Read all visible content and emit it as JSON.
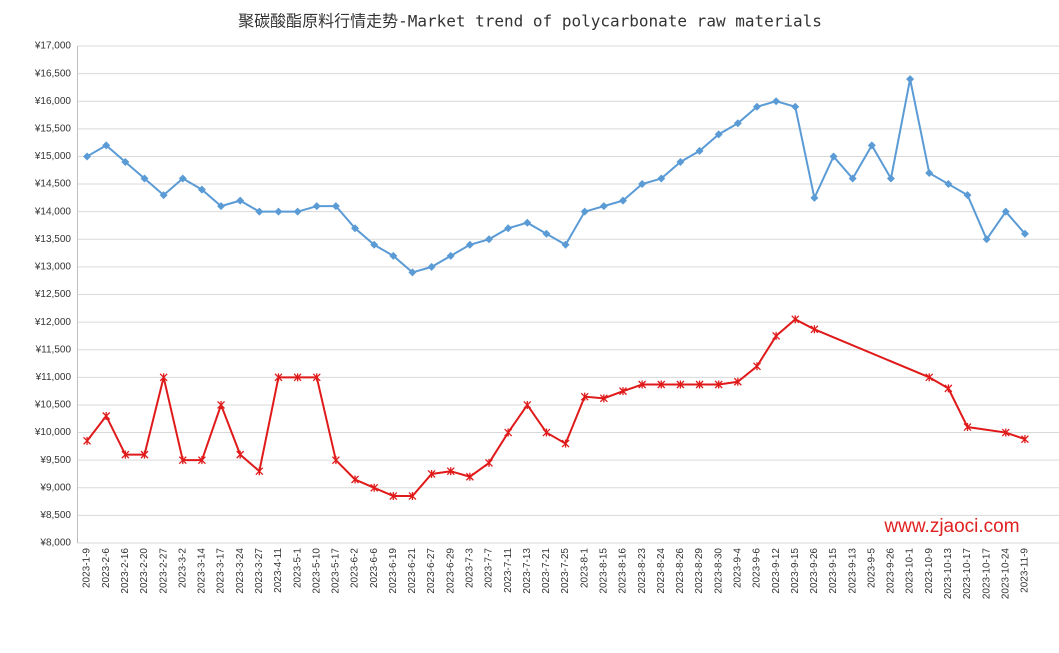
{
  "chart_data": {
    "type": "line",
    "title": "聚碳酸酯原料行情走势-Market trend of polycarbonate raw materials",
    "annotation": "www.zjaoci.com",
    "categories": [
      "2023-1-9",
      "2023-2-6",
      "2023-2-16",
      "2023-2-20",
      "2023-2-27",
      "2023-3-2",
      "2023-3-14",
      "2023-3-17",
      "2023-3-24",
      "2023-3-27",
      "2023-4-11",
      "2023-5-1",
      "2023-5-10",
      "2023-5-17",
      "2023-6-2",
      "2023-6-6",
      "2023-6-19",
      "2023-6-21",
      "2023-6-27",
      "2023-6-29",
      "2023-7-3",
      "2023-7-7",
      "2023-7-11",
      "2023-7-13",
      "2023-7-21",
      "2023-7-25",
      "2023-8-1",
      "2023-8-15",
      "2023-8-16",
      "2023-8-23",
      "2023-8-24",
      "2023-8-26",
      "2023-8-29",
      "2023-8-30",
      "2023-9-4",
      "2023-9-6",
      "2023-9-12",
      "2023-9-15",
      "2023-9-26",
      "2023-9-15",
      "2023-9-13",
      "2023-9-5",
      "2023-9-26",
      "2023-10-1",
      "2023-10-9",
      "2023-10-13",
      "2023-10-17",
      "2023-10-17",
      "2023-10-24",
      "2023-11-9"
    ],
    "series": [
      {
        "color": "#5b9bd5",
        "marker": "diamond",
        "values": [
          15000,
          15200,
          14900,
          14600,
          14300,
          14600,
          14400,
          14100,
          14200,
          14000,
          14000,
          14000,
          14100,
          14100,
          13700,
          13400,
          13200,
          12900,
          13000,
          13200,
          13400,
          13500,
          13700,
          13800,
          13600,
          13400,
          14000,
          14100,
          14200,
          14500,
          14600,
          14900,
          15100,
          15400,
          15600,
          15900,
          16000,
          15900,
          14250,
          15000,
          14600,
          15200,
          14600,
          16400,
          14700,
          14500,
          14300,
          13500,
          14000,
          13600
        ]
      },
      {
        "color": "#e01a1a",
        "marker": "star",
        "values": [
          9850,
          10300,
          9600,
          9600,
          11000,
          9500,
          9500,
          10500,
          9600,
          9300,
          11000,
          11000,
          11000,
          9500,
          9150,
          9000,
          8850,
          8850,
          9250,
          9300,
          9200,
          9450,
          10000,
          10500,
          10000,
          9800,
          10650,
          10620,
          10750,
          10870,
          10870,
          10870,
          10870,
          10870,
          10920,
          11200,
          11750,
          12050,
          11870,
          null,
          null,
          null,
          null,
          null,
          11000,
          10800,
          10100,
          null,
          10000,
          9880
        ]
      }
    ],
    "span_gaps": true,
    "grid": true,
    "ylim": [
      8000,
      17000
    ],
    "yticks": [
      {
        "value": 8000,
        "label": "¥8,000"
      },
      {
        "value": 8500,
        "label": "¥8,500"
      },
      {
        "value": 9000,
        "label": "¥9,000"
      },
      {
        "value": 9500,
        "label": "¥9,500"
      },
      {
        "value": 10000,
        "label": "¥10,000"
      },
      {
        "value": 10500,
        "label": "¥10,500"
      },
      {
        "value": 11000,
        "label": "¥11,000"
      },
      {
        "value": 11500,
        "label": "¥11,500"
      },
      {
        "value": 12000,
        "label": "¥12,000"
      },
      {
        "value": 12500,
        "label": "¥12,500"
      },
      {
        "value": 13000,
        "label": "¥13,000"
      },
      {
        "value": 13500,
        "label": "¥13,500"
      },
      {
        "value": 14000,
        "label": "¥14,000"
      },
      {
        "value": 14500,
        "label": "¥14,500"
      },
      {
        "value": 15000,
        "label": "¥15,000"
      },
      {
        "value": 15500,
        "label": "¥15,500"
      },
      {
        "value": 16000,
        "label": "¥16,000"
      },
      {
        "value": 16500,
        "label": "¥16,500"
      },
      {
        "value": 17000,
        "label": "¥17,000"
      }
    ]
  }
}
